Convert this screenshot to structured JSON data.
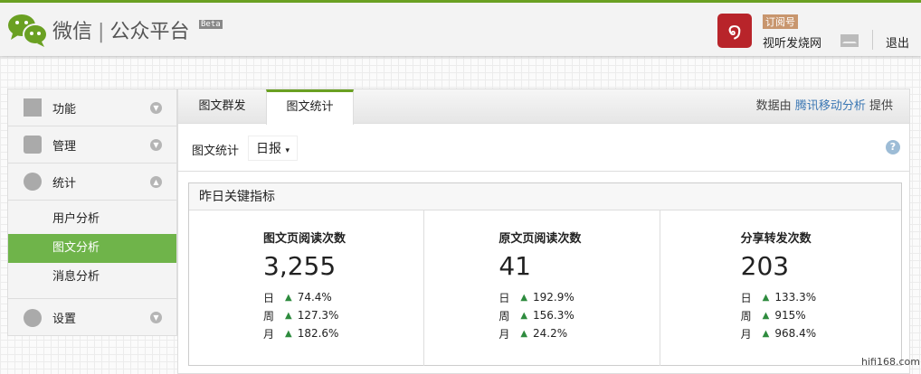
{
  "header": {
    "brand_left": "微信",
    "brand_right": "公众平台",
    "beta": "Beta",
    "account_badge": "订阅号",
    "account_name": "视听发烧网",
    "logout": "退出",
    "accent": "#6aa022"
  },
  "sidebar": {
    "items": [
      {
        "label": "功能",
        "icon": "grid-icon"
      },
      {
        "label": "管理",
        "icon": "inbox-icon"
      },
      {
        "label": "统计",
        "icon": "pie-chart-icon"
      },
      {
        "label": "设置",
        "icon": "gear-icon"
      }
    ],
    "sub": [
      {
        "label": "用户分析"
      },
      {
        "label": "图文分析",
        "active": true
      },
      {
        "label": "消息分析"
      }
    ]
  },
  "tabs": [
    {
      "label": "图文群发"
    },
    {
      "label": "图文统计",
      "active": true
    }
  ],
  "credit": {
    "prefix": "数据由",
    "link": "腾讯移动分析",
    "suffix": "提供"
  },
  "filter": {
    "label": "图文统计",
    "value": "日报"
  },
  "card": {
    "title": "昨日关键指标",
    "metrics": [
      {
        "title": "图文页阅读次数",
        "value": "3,255",
        "rows": [
          {
            "k": "日",
            "v": "74.4%"
          },
          {
            "k": "周",
            "v": "127.3%"
          },
          {
            "k": "月",
            "v": "182.6%"
          }
        ]
      },
      {
        "title": "原文页阅读次数",
        "value": "41",
        "rows": [
          {
            "k": "日",
            "v": "192.9%"
          },
          {
            "k": "周",
            "v": "156.3%"
          },
          {
            "k": "月",
            "v": "24.2%"
          }
        ]
      },
      {
        "title": "分享转发次数",
        "value": "203",
        "rows": [
          {
            "k": "日",
            "v": "133.3%"
          },
          {
            "k": "周",
            "v": "915%"
          },
          {
            "k": "月",
            "v": "968.4%"
          }
        ]
      }
    ]
  },
  "watermark": "hifi168.com"
}
